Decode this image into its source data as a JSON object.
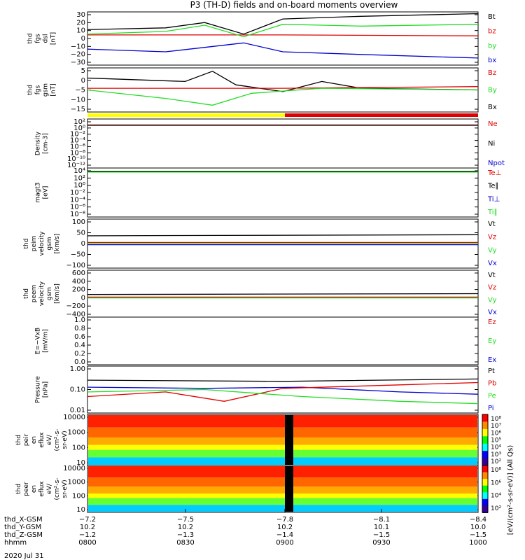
{
  "title": "P3 (TH-D) fields and on-board moments overview",
  "date_label": "2020 Jul 31",
  "colors": {
    "black": "#000000",
    "red": "#e00000",
    "green": "#22dd22",
    "blue": "#0000cc",
    "yellow": "#ffff00"
  },
  "chart_data": [
    {
      "type": "line",
      "panel": "fgs_dsl",
      "ylabel": [
        "thd",
        "fgs",
        "dsl",
        "[nT]"
      ],
      "yticks": [
        "30",
        "20",
        "10",
        "0",
        "−10",
        "−20",
        "−30"
      ],
      "ylim": [
        -30,
        30
      ],
      "legend": [
        {
          "label": "Bt",
          "color": "black"
        },
        {
          "label": "bz",
          "color": "red"
        },
        {
          "label": "by",
          "color": "green"
        },
        {
          "label": "bx",
          "color": "blue"
        }
      ],
      "series": [
        {
          "name": "Bt",
          "color": "black",
          "points": [
            [
              0,
              10
            ],
            [
              0.2,
              12
            ],
            [
              0.3,
              18
            ],
            [
              0.4,
              5
            ],
            [
              0.5,
              22
            ],
            [
              0.7,
              25
            ],
            [
              1,
              28
            ]
          ]
        },
        {
          "name": "bz",
          "color": "red",
          "points": [
            [
              0,
              4
            ],
            [
              0.5,
              4
            ],
            [
              1,
              3
            ]
          ]
        },
        {
          "name": "by",
          "color": "green",
          "points": [
            [
              0,
              5
            ],
            [
              0.2,
              8
            ],
            [
              0.3,
              15
            ],
            [
              0.4,
              2
            ],
            [
              0.5,
              16
            ],
            [
              0.7,
              14
            ],
            [
              1,
              16
            ]
          ]
        },
        {
          "name": "bx",
          "color": "blue",
          "points": [
            [
              0,
              -12
            ],
            [
              0.2,
              -15
            ],
            [
              0.3,
              -10
            ],
            [
              0.4,
              -5
            ],
            [
              0.5,
              -15
            ],
            [
              0.7,
              -18
            ],
            [
              1,
              -22
            ]
          ]
        }
      ]
    },
    {
      "type": "line",
      "panel": "fgs_gsm",
      "ylabel": [
        "thd",
        "fgs",
        "gsm",
        "[nT]"
      ],
      "yticks": [
        "5",
        "0",
        "−5",
        "−10",
        "−15"
      ],
      "ylim": [
        -18,
        8
      ],
      "legend": [
        {
          "label": "Bz",
          "color": "red"
        },
        {
          "label": "By",
          "color": "green"
        },
        {
          "label": "Bx",
          "color": "black"
        }
      ],
      "series": [
        {
          "name": "Bx",
          "color": "black",
          "points": [
            [
              0,
              2
            ],
            [
              0.25,
              0
            ],
            [
              0.32,
              6
            ],
            [
              0.38,
              -2
            ],
            [
              0.5,
              -6
            ],
            [
              0.6,
              0
            ],
            [
              0.7,
              -4
            ],
            [
              1,
              -5
            ]
          ]
        },
        {
          "name": "Bz",
          "color": "red",
          "points": [
            [
              0,
              -4
            ],
            [
              0.5,
              -4
            ],
            [
              1,
              -3
            ]
          ]
        },
        {
          "name": "By",
          "color": "green",
          "points": [
            [
              0,
              -5
            ],
            [
              0.2,
              -10
            ],
            [
              0.32,
              -14
            ],
            [
              0.42,
              -7
            ],
            [
              0.6,
              -4
            ],
            [
              1,
              -5
            ]
          ]
        }
      ]
    },
    {
      "type": "line",
      "panel": "density",
      "ylabel": [
        "Density",
        "[cm-3]"
      ],
      "yticks": [
        "10²",
        "10⁰",
        "10⁻²",
        "10⁻⁴",
        "10⁻⁶",
        "10⁻⁸",
        "10⁻¹⁰",
        "10⁻¹²"
      ],
      "ylim": [
        -12,
        2
      ],
      "legend": [
        {
          "label": "Ne",
          "color": "red"
        },
        {
          "label": "Ni",
          "color": "black"
        },
        {
          "label": "Npot",
          "color": "blue"
        }
      ],
      "series": [
        {
          "name": "Ne",
          "color": "red",
          "points": [
            [
              0,
              0.3
            ],
            [
              1,
              0.3
            ]
          ]
        },
        {
          "name": "Ni",
          "color": "black",
          "points": [
            [
              0,
              0.2
            ],
            [
              1,
              0.2
            ]
          ]
        }
      ]
    },
    {
      "type": "line",
      "panel": "temperature",
      "ylabel": [
        "magt3",
        "[eV]"
      ],
      "yticks": [
        "10⁴",
        "10²",
        "10⁰",
        "10⁻²",
        "10⁻⁴",
        "10⁻⁶",
        "10⁻⁸"
      ],
      "ylim": [
        -8,
        4
      ],
      "legend": [
        {
          "label": "Te⊥",
          "color": "red"
        },
        {
          "label": "Te∥",
          "color": "black"
        },
        {
          "label": "Ti⊥",
          "color": "blue"
        },
        {
          "label": "Ti∥",
          "color": "green"
        }
      ],
      "series": [
        {
          "name": "Te",
          "color": "black",
          "points": [
            [
              0,
              3.2
            ],
            [
              1,
              3.2
            ]
          ]
        },
        {
          "name": "Ti",
          "color": "green",
          "points": [
            [
              0,
              3
            ],
            [
              1,
              3
            ]
          ]
        }
      ]
    },
    {
      "type": "line",
      "panel": "peim_velocity",
      "ylabel": [
        "thd",
        "peim",
        "velocity",
        "gsm",
        "[km/s]"
      ],
      "yticks": [
        "100",
        "50",
        "0",
        "−50",
        "−100"
      ],
      "ylim": [
        -110,
        110
      ],
      "legend": [
        {
          "label": "Vt",
          "color": "black"
        },
        {
          "label": "Vz",
          "color": "red"
        },
        {
          "label": "Vy",
          "color": "green"
        },
        {
          "label": "Vx",
          "color": "blue"
        }
      ],
      "series": [
        {
          "name": "Vt",
          "color": "black",
          "points": [
            [
              0,
              35
            ],
            [
              1,
              40
            ]
          ]
        },
        {
          "name": "Vz",
          "color": "red",
          "points": [
            [
              0,
              5
            ],
            [
              1,
              5
            ]
          ]
        },
        {
          "name": "Vy",
          "color": "green",
          "points": [
            [
              0,
              0
            ],
            [
              1,
              0
            ]
          ]
        },
        {
          "name": "Vx",
          "color": "blue",
          "points": [
            [
              0,
              -5
            ],
            [
              1,
              -5
            ]
          ]
        }
      ]
    },
    {
      "type": "line",
      "panel": "peem_velocity",
      "ylabel": [
        "thd",
        "peem",
        "velocity",
        "gsm",
        "[km/s]"
      ],
      "yticks": [
        "600",
        "400",
        "200",
        "0",
        "−200",
        "−400"
      ],
      "ylim": [
        -450,
        650
      ],
      "legend": [
        {
          "label": "Vt",
          "color": "black"
        },
        {
          "label": "Vz",
          "color": "red"
        },
        {
          "label": "Vy",
          "color": "green"
        },
        {
          "label": "Vx",
          "color": "blue"
        }
      ],
      "series": [
        {
          "name": "Vt",
          "color": "black",
          "points": [
            [
              0,
              80
            ],
            [
              1,
              100
            ]
          ]
        },
        {
          "name": "Vz",
          "color": "red",
          "points": [
            [
              0,
              20
            ],
            [
              1,
              20
            ]
          ]
        },
        {
          "name": "Vy",
          "color": "green",
          "points": [
            [
              0,
              0
            ],
            [
              1,
              0
            ]
          ]
        }
      ]
    },
    {
      "type": "line",
      "panel": "efield",
      "ylabel": [
        "E=−VxB",
        "[mV/m]"
      ],
      "yticks": [
        "1.0",
        "0.8",
        "0.6",
        "0.4",
        "0.2",
        "0.0"
      ],
      "ylim": [
        0,
        1
      ],
      "legend": [
        {
          "label": "Ez",
          "color": "red"
        },
        {
          "label": "Ey",
          "color": "green"
        },
        {
          "label": "Ex",
          "color": "blue"
        }
      ],
      "series": []
    },
    {
      "type": "line",
      "panel": "pressure",
      "ylabel": [
        "Pressure",
        "[nPa]"
      ],
      "yticks": [
        "1.00",
        "0.10",
        "0.01"
      ],
      "ylim": [
        -2,
        0
      ],
      "legend": [
        {
          "label": "Pt",
          "color": "black"
        },
        {
          "label": "Pb",
          "color": "red"
        },
        {
          "label": "Pe",
          "color": "green"
        },
        {
          "label": "Pi",
          "color": "blue"
        }
      ],
      "series": [
        {
          "name": "Pt",
          "color": "black",
          "points": [
            [
              0,
              -0.6
            ],
            [
              0.5,
              -0.65
            ],
            [
              1,
              -0.55
            ]
          ]
        },
        {
          "name": "Pi",
          "color": "blue",
          "points": [
            [
              0,
              -0.9
            ],
            [
              0.3,
              -0.95
            ],
            [
              0.55,
              -0.9
            ],
            [
              0.8,
              -1.1
            ],
            [
              1,
              -1.2
            ]
          ]
        },
        {
          "name": "Pb",
          "color": "red",
          "points": [
            [
              0,
              -1.3
            ],
            [
              0.2,
              -1.1
            ],
            [
              0.35,
              -1.5
            ],
            [
              0.5,
              -0.95
            ],
            [
              0.8,
              -0.8
            ],
            [
              1,
              -0.7
            ]
          ]
        },
        {
          "name": "Pe",
          "color": "green",
          "points": [
            [
              0,
              -1.1
            ],
            [
              0.3,
              -1.0
            ],
            [
              0.55,
              -1.3
            ],
            [
              0.8,
              -1.5
            ],
            [
              1,
              -1.6
            ]
          ]
        }
      ]
    },
    {
      "type": "heatmap",
      "panel": "peir_en_eflux",
      "ylabel": [
        "thd",
        "peir",
        "en",
        "eflux",
        "eV/",
        "(cm²-s-",
        "sr-eV)"
      ],
      "yticks": [
        "10000",
        "1000",
        "100",
        "10"
      ],
      "colorbar_ticks": [
        "10⁸",
        "10⁷",
        "10⁶",
        "10⁵",
        "10⁴",
        "10³",
        "10²"
      ]
    },
    {
      "type": "heatmap",
      "panel": "peer_en_eflux",
      "ylabel": [
        "thd",
        "peer",
        "en",
        "eflux",
        "eV/",
        "(cm²-s-",
        "sr-eV)"
      ],
      "yticks": [
        "10000",
        "1000",
        "100",
        "10"
      ],
      "colorbar_ticks": [
        "10⁸",
        "10⁶",
        "10⁴",
        "10²"
      ]
    }
  ],
  "colorbar_title": "[eV/(cm²-s-sr-eV)] (All Qs)",
  "x_axis": {
    "rows": [
      {
        "label": "thd_X-GSM",
        "values": [
          "−7.2",
          "−7.5",
          "−7.8",
          "−8.1",
          "−8.4"
        ]
      },
      {
        "label": "thd_Y-GSM",
        "values": [
          "10.2",
          "10.2",
          "10.2",
          "10.1",
          "10.0"
        ]
      },
      {
        "label": "thd_Z-GSM",
        "values": [
          "−1.2",
          "−1.3",
          "−1.4",
          "−1.5",
          "−1.5"
        ]
      },
      {
        "label": "hhmm",
        "values": [
          "0800",
          "0830",
          "0900",
          "0930",
          "1000"
        ]
      }
    ]
  }
}
